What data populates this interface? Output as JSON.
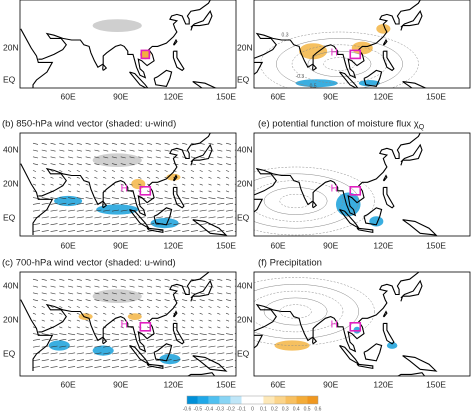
{
  "panels": [
    {
      "lat_labels": [
        "20N",
        "EQ"
      ],
      "lon_labels": [
        "60E",
        "90E",
        "120E",
        "150E"
      ],
      "marks": []
    },
    {
      "lat_labels": [
        "20N",
        "EQ"
      ],
      "lon_labels": [
        "60E",
        "90E",
        "120E",
        "150E"
      ],
      "marks": [
        "H"
      ],
      "contour_labels": [
        "0.3",
        "-0.3",
        "0.5"
      ]
    },
    {
      "caption": "(b) 850-hPa wind vector (shaded: u-wind)",
      "lat_labels": [
        "40N",
        "20N",
        "EQ"
      ],
      "lon_labels": [
        "60E",
        "90E",
        "120E",
        "150E"
      ],
      "marks": [
        "H"
      ]
    },
    {
      "caption": "(e) potential function of moisture flux χ",
      "caption_sub": "Q",
      "lat_labels": [
        "40N",
        "20N",
        "EQ"
      ],
      "lon_labels": [
        "60E",
        "90E",
        "120E",
        "150E"
      ],
      "marks": [
        "H"
      ]
    },
    {
      "caption": "(c) 700-hPa wind vector (shaded: u-wind)",
      "lat_labels": [
        "40N",
        "20N",
        "EQ"
      ],
      "lon_labels": [
        "60E",
        "90E",
        "120E",
        "150E"
      ],
      "marks": [
        "H"
      ]
    },
    {
      "caption": "(f) Precipitation",
      "lat_labels": [
        "40N",
        "20N",
        "EQ"
      ],
      "lon_labels": [
        "60E",
        "90E",
        "120E",
        "150E"
      ],
      "marks": [
        "H"
      ]
    }
  ],
  "colorbar": {
    "ticks": [
      "-0.6",
      "-0.5",
      "-0.4",
      "-0.3",
      "-0.2",
      "-0.1",
      "0",
      "0.1",
      "0.2",
      "0.3",
      "0.4",
      "0.5",
      "0.6"
    ]
  }
}
